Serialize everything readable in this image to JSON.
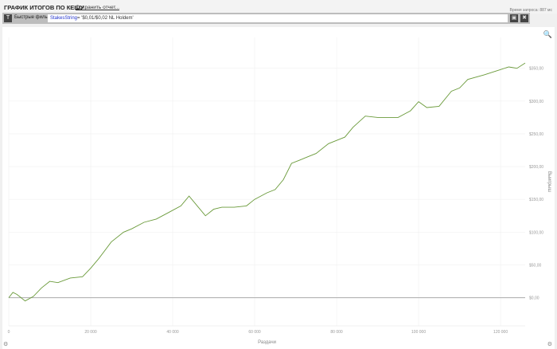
{
  "header": {
    "title": "ГРАФИК ИТОГОВ ПО КЕШУ",
    "save_report": "Сохранить отчет...",
    "query_time": "Время запроса: 887 мс"
  },
  "filter": {
    "label": "Быстрые филь",
    "key": "StakesString",
    "value": "= '$0,01/$0,02 NL Holdem'",
    "icons": [
      "filter-icon",
      "save-icon",
      "clear-icon"
    ]
  },
  "chart_data": {
    "type": "line",
    "xlabel": "Раздачи",
    "ylabel": "Выигрыш",
    "xlim": [
      0,
      126000
    ],
    "ylim": [
      -43,
      397
    ],
    "xticks": [
      0,
      20000,
      40000,
      60000,
      80000,
      100000,
      120000
    ],
    "xtick_labels": [
      "0",
      "20 000",
      "40 000",
      "60 000",
      "80 000",
      "100 000",
      "120 000"
    ],
    "yticks": [
      0,
      50,
      100,
      150,
      200,
      250,
      300,
      350
    ],
    "ytick_labels": [
      "$0,00",
      "$50,00",
      "$100,00",
      "$150,00",
      "$200,00",
      "$250,00",
      "$300,00",
      "$350,00"
    ],
    "grid": true,
    "color": "#6a9a3a",
    "zero_line_color": "#aaaaaa",
    "x": [
      0,
      1000,
      2000,
      4000,
      6000,
      8000,
      10000,
      12000,
      15000,
      18000,
      20000,
      22000,
      25000,
      28000,
      30000,
      33000,
      36000,
      39000,
      42000,
      44000,
      46000,
      48000,
      50000,
      52000,
      55000,
      58000,
      60000,
      63000,
      65000,
      67000,
      69000,
      71000,
      73000,
      75000,
      78000,
      80000,
      82000,
      84000,
      87000,
      90000,
      95000,
      98000,
      100000,
      102000,
      105000,
      108000,
      110000,
      112000,
      116000,
      120000,
      122000,
      124000,
      126000
    ],
    "y": [
      0,
      8,
      5,
      -5,
      2,
      15,
      25,
      23,
      30,
      32,
      45,
      60,
      85,
      100,
      105,
      115,
      120,
      130,
      140,
      155,
      140,
      125,
      135,
      138,
      138,
      140,
      150,
      160,
      165,
      180,
      205,
      210,
      215,
      220,
      235,
      240,
      245,
      260,
      277,
      275,
      275,
      285,
      299,
      290,
      292,
      315,
      320,
      333,
      340,
      348,
      352,
      350,
      358
    ]
  }
}
